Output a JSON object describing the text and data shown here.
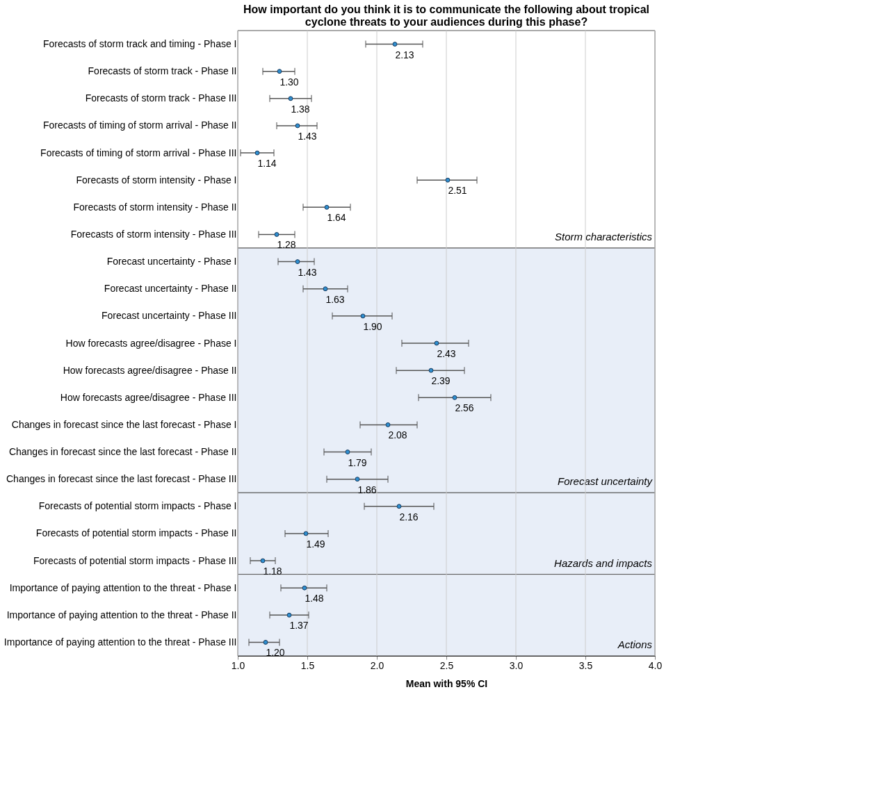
{
  "chart_data": {
    "type": "scatter",
    "orientation": "horizontal",
    "title": "How important do you think it is to communicate the following about tropical\ncyclone threats to your audiences during this phase?",
    "xlabel": "Mean with 95% CI",
    "categories": [
      "Forecasts of storm track and timing - Phase I",
      "Forecasts of storm track - Phase II",
      "Forecasts of storm track  - Phase III",
      "Forecasts of timing of storm arrival - Phase II",
      "Forecasts of timing of storm arrival - Phase III",
      "Forecasts of storm intensity - Phase I",
      "Forecasts of storm intensity - Phase II",
      "Forecasts of storm intensity - Phase III",
      "Forecast uncertainty - Phase I",
      "Forecast uncertainty - Phase II",
      "Forecast uncertainty - Phase III",
      "How forecasts agree/disagree - Phase I",
      "How forecasts agree/disagree - Phase II",
      "How forecasts agree/disagree - Phase III",
      "Changes in forecast since the last forecast - Phase I",
      "Changes in forecast since the last forecast - Phase II",
      "Changes in forecast since the last forecast - Phase III",
      "Forecasts of potential storm impacts - Phase I",
      "Forecasts of potential storm impacts - Phase II",
      "Forecasts of potential storm impacts - Phase III",
      "Importance of paying attention to the threat - Phase I",
      "Importance of paying attention to the threat - Phase II",
      "Importance of paying attention to the threat - Phase III"
    ],
    "series": [
      {
        "color": "#2f8fd0",
        "values": [
          2.13,
          1.3,
          1.38,
          1.43,
          1.14,
          2.51,
          1.64,
          1.28,
          1.43,
          1.63,
          1.9,
          2.43,
          2.39,
          2.56,
          2.08,
          1.79,
          1.86,
          2.16,
          1.49,
          1.18,
          1.48,
          1.37,
          1.2
        ],
        "value_labels": [
          "2.13",
          "1.30",
          "1.38",
          "1.43",
          "1.14",
          "2.51",
          "1.64",
          "1.28",
          "1.43",
          "1.63",
          "1.90",
          "2.43",
          "2.39",
          "2.56",
          "2.08",
          "1.79",
          "1.86",
          "2.16",
          "1.49",
          "1.18",
          "1.48",
          "1.37",
          "1.20"
        ],
        "errors": [
          [
            1.92,
            2.33
          ],
          [
            1.18,
            1.41
          ],
          [
            1.23,
            1.53
          ],
          [
            1.28,
            1.57
          ],
          [
            1.02,
            1.26
          ],
          [
            2.29,
            2.72
          ],
          [
            1.47,
            1.81
          ],
          [
            1.15,
            1.41
          ],
          [
            1.29,
            1.55
          ],
          [
            1.47,
            1.79
          ],
          [
            1.68,
            2.11
          ],
          [
            2.18,
            2.66
          ],
          [
            2.14,
            2.63
          ],
          [
            2.3,
            2.82
          ],
          [
            1.88,
            2.29
          ],
          [
            1.62,
            1.96
          ],
          [
            1.64,
            2.08
          ],
          [
            1.91,
            2.41
          ],
          [
            1.34,
            1.65
          ],
          [
            1.09,
            1.27
          ],
          [
            1.31,
            1.64
          ],
          [
            1.23,
            1.51
          ],
          [
            1.08,
            1.3
          ]
        ]
      }
    ],
    "xlim": [
      1.0,
      4.0
    ],
    "xticks": [
      {
        "value": 1.0,
        "label": "1.0"
      },
      {
        "value": 1.5,
        "label": "1.5"
      },
      {
        "value": 2.0,
        "label": "2.0"
      },
      {
        "value": 2.5,
        "label": "2.5"
      },
      {
        "value": 3.0,
        "label": "3.0"
      },
      {
        "value": 3.5,
        "label": "3.5"
      },
      {
        "value": 4.0,
        "label": "4.0"
      }
    ],
    "grid": "x",
    "marker": "circle",
    "bands": [
      {
        "axis": "y",
        "from": "Forecasts of storm track and timing - Phase I",
        "to": "Forecasts of storm intensity - Phase III",
        "label": "Storm characteristics",
        "color": "#ffffff"
      },
      {
        "axis": "y",
        "from": "Forecast uncertainty - Phase I",
        "to": "Changes in forecast since the last forecast - Phase III",
        "label": "Forecast uncertainty",
        "color": "#e8eef8"
      },
      {
        "axis": "y",
        "from": "Forecasts of potential storm impacts - Phase I",
        "to": "Forecasts of potential storm impacts - Phase III",
        "label": "Hazards and impacts",
        "color": "#e8eef8"
      },
      {
        "axis": "y",
        "from": "Importance of paying attention to the threat - Phase I",
        "to": "Importance of paying attention to the threat - Phase III",
        "label": "Actions",
        "color": "#e8eef8"
      }
    ]
  }
}
